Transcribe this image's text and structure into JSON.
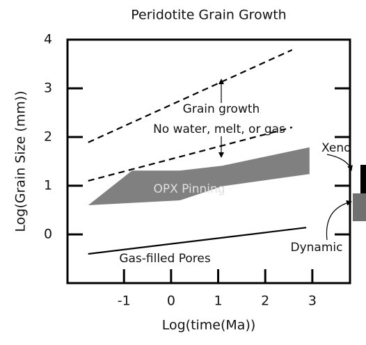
{
  "chart_data": {
    "type": "line",
    "title": "Peridotite Grain Growth",
    "xlabel": "Log(time(Ma))",
    "ylabel": "Log(Grain Size (mm))",
    "xlim": [
      -2.2,
      3.8
    ],
    "xticks": [
      -1,
      0,
      1,
      2,
      3
    ],
    "ylim": [
      -1,
      4
    ],
    "yticks": [
      0,
      1,
      2,
      3,
      4
    ],
    "series": [
      {
        "x": [
          -1.76,
          2.57
        ],
        "values": [
          1.89,
          3.79
        ],
        "color": "#000000",
        "dash": true,
        "fill": false
      },
      {
        "x": [
          -1.76,
          2.57
        ],
        "values": [
          1.1,
          2.2
        ],
        "color": "#000000",
        "dash": true,
        "fill": false
      },
      {
        "x": [
          -1.76,
          -0.83,
          0.19,
          1.09,
          2.94,
          2.94,
          1.09,
          0.19,
          -1.76
        ],
        "values": [
          0.6,
          1.31,
          1.31,
          1.41,
          1.79,
          1.24,
          0.99,
          0.7,
          0.6
        ],
        "color": "#808080",
        "dash": false,
        "fill": true
      },
      {
        "x": [
          -1.76,
          2.87
        ],
        "values": [
          -0.4,
          0.14
        ],
        "color": "#000000",
        "dash": false,
        "fill": false
      }
    ],
    "annotations": [
      "Grain growth",
      "No water, melt, or gas",
      "Xeno",
      "OPX Pinning",
      "Dynamic",
      "Gas-filled Pores"
    ]
  }
}
